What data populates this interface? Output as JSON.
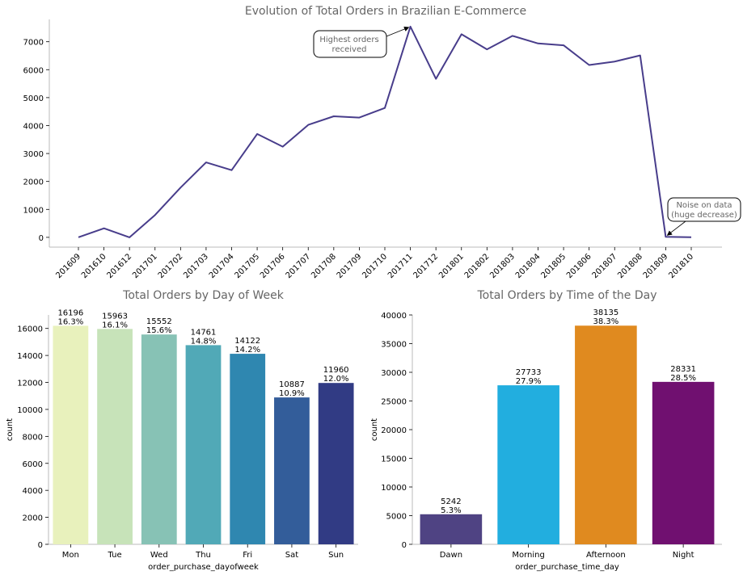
{
  "chart_data": [
    {
      "type": "line",
      "title": "Evolution of Total Orders in Brazilian E-Commerce",
      "xlabel": "",
      "ylabel": "",
      "ylim": [
        -350,
        7800
      ],
      "yticks": [
        0,
        1000,
        2000,
        3000,
        4000,
        5000,
        6000,
        7000
      ],
      "x": [
        "201609",
        "201610",
        "201612",
        "201701",
        "201702",
        "201703",
        "201704",
        "201705",
        "201706",
        "201707",
        "201708",
        "201709",
        "201710",
        "201711",
        "201712",
        "201801",
        "201802",
        "201803",
        "201804",
        "201805",
        "201806",
        "201807",
        "201808",
        "201809",
        "201810"
      ],
      "series": [
        {
          "color": "#483d8b",
          "values": [
            4,
            324,
            1,
            800,
            1780,
            2682,
            2404,
            3700,
            3245,
            4026,
            4331,
            4285,
            4631,
            7544,
            5673,
            7269,
            6728,
            7211,
            6939,
            6873,
            6167,
            6292,
            6512,
            16,
            4
          ]
        }
      ],
      "annotations": [
        {
          "text_line1": "Highest orders",
          "text_line2": "received",
          "x": "201711",
          "y": 7544
        },
        {
          "text_line1": "Noise on data",
          "text_line2": "(huge decrease)",
          "x": "201809",
          "y": 16
        }
      ]
    },
    {
      "type": "bar",
      "title": "Total Orders by Day of Week",
      "xlabel": "order_purchase_dayofweek",
      "ylabel": "count",
      "ylim": [
        0,
        17000
      ],
      "yticks": [
        0,
        2000,
        4000,
        6000,
        8000,
        10000,
        12000,
        14000,
        16000
      ],
      "categories": [
        "Mon",
        "Tue",
        "Wed",
        "Thu",
        "Fri",
        "Sat",
        "Sun"
      ],
      "values": [
        16196,
        15963,
        15552,
        14761,
        14122,
        10887,
        11960
      ],
      "percent_labels": [
        "16.3%",
        "16.1%",
        "15.6%",
        "14.8%",
        "14.2%",
        "10.9%",
        "12.0%"
      ],
      "colors": [
        "#e8f1bc",
        "#c7e3b9",
        "#87c2b5",
        "#51a9b7",
        "#2f87b0",
        "#335d9a",
        "#313b84"
      ]
    },
    {
      "type": "bar",
      "title": "Total Orders by Time of the Day",
      "xlabel": "order_purchase_time_day",
      "ylabel": "count",
      "ylim": [
        0,
        40000
      ],
      "yticks": [
        0,
        5000,
        10000,
        15000,
        20000,
        25000,
        30000,
        35000,
        40000
      ],
      "categories": [
        "Dawn",
        "Morning",
        "Afternoon",
        "Night"
      ],
      "values": [
        5242,
        27733,
        38135,
        28331
      ],
      "percent_labels": [
        "5.3%",
        "27.9%",
        "38.3%",
        "28.5%"
      ],
      "colors": [
        "#4f4383",
        "#22aedf",
        "#e08a1f",
        "#701070"
      ]
    }
  ]
}
